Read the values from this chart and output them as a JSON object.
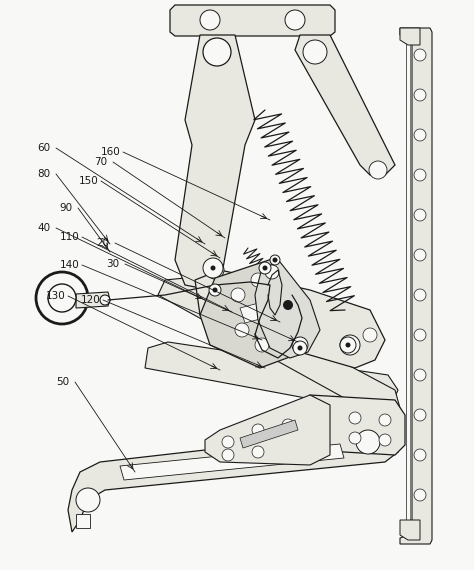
{
  "bg_color": "#f8f8f6",
  "line_color": "#1a1a1a",
  "fill_light": "#e8e8e0",
  "fill_mid": "#d8d8d0",
  "label_fontsize": 7.5,
  "annotations": [
    [
      60,
      0.093,
      0.31,
      0.28,
      0.248
    ],
    [
      80,
      0.093,
      0.368,
      0.278,
      0.245
    ],
    [
      70,
      0.213,
      0.338,
      0.36,
      0.238
    ],
    [
      160,
      0.233,
      0.318,
      0.42,
      0.222
    ],
    [
      90,
      0.093,
      0.425,
      0.235,
      0.28
    ],
    [
      150,
      0.188,
      0.38,
      0.36,
      0.292
    ],
    [
      40,
      0.093,
      0.48,
      0.31,
      0.338
    ],
    [
      110,
      0.148,
      0.498,
      0.36,
      0.395
    ],
    [
      20,
      0.218,
      0.51,
      0.445,
      0.438
    ],
    [
      140,
      0.148,
      0.558,
      0.39,
      0.488
    ],
    [
      30,
      0.238,
      0.558,
      0.48,
      0.478
    ],
    [
      130,
      0.118,
      0.618,
      0.348,
      0.545
    ],
    [
      120,
      0.193,
      0.628,
      0.405,
      0.548
    ],
    [
      50,
      0.133,
      0.8,
      0.282,
      0.738
    ]
  ]
}
